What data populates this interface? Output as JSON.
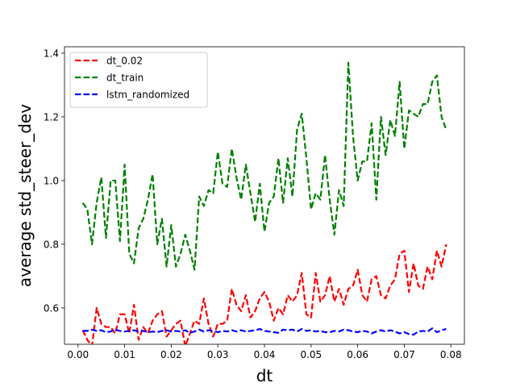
{
  "chart_data": {
    "type": "line",
    "xlabel": "dt",
    "ylabel": "average std_steer_dev",
    "xlim": [
      -0.0029,
      0.0829
    ],
    "ylim": [
      0.486,
      1.42
    ],
    "xticks": [
      0.0,
      0.01,
      0.02,
      0.03,
      0.04,
      0.05,
      0.06,
      0.07,
      0.08
    ],
    "xtick_labels": [
      "0.00",
      "0.01",
      "0.02",
      "0.03",
      "0.04",
      "0.05",
      "0.06",
      "0.07",
      "0.08"
    ],
    "yticks": [
      0.6,
      0.8,
      1.0,
      1.2,
      1.4
    ],
    "ytick_labels": [
      "0.6",
      "0.8",
      "1.0",
      "1.2",
      "1.4"
    ],
    "grid": false,
    "legend_position": "top-left",
    "x": [
      0.001,
      0.002,
      0.003,
      0.004,
      0.005,
      0.006,
      0.007,
      0.008,
      0.009,
      0.01,
      0.011,
      0.012,
      0.013,
      0.014,
      0.015,
      0.016,
      0.017,
      0.018,
      0.019,
      0.02,
      0.021,
      0.022,
      0.023,
      0.024,
      0.025,
      0.026,
      0.027,
      0.028,
      0.029,
      0.03,
      0.031,
      0.032,
      0.033,
      0.034,
      0.035,
      0.036,
      0.037,
      0.038,
      0.039,
      0.04,
      0.041,
      0.042,
      0.043,
      0.044,
      0.045,
      0.046,
      0.047,
      0.048,
      0.049,
      0.05,
      0.051,
      0.052,
      0.053,
      0.054,
      0.055,
      0.056,
      0.057,
      0.058,
      0.059,
      0.06,
      0.061,
      0.062,
      0.063,
      0.064,
      0.065,
      0.066,
      0.067,
      0.068,
      0.069,
      0.07,
      0.071,
      0.072,
      0.073,
      0.074,
      0.075,
      0.076,
      0.077,
      0.078,
      0.079
    ],
    "series": [
      {
        "name": "dt_0.02",
        "color": "#ff0000",
        "values": [
          0.53,
          0.5,
          0.48,
          0.6,
          0.55,
          0.54,
          0.54,
          0.52,
          0.58,
          0.58,
          0.52,
          0.61,
          0.5,
          0.54,
          0.52,
          0.56,
          0.58,
          0.59,
          0.51,
          0.53,
          0.55,
          0.56,
          0.48,
          0.52,
          0.56,
          0.55,
          0.63,
          0.55,
          0.51,
          0.55,
          0.55,
          0.56,
          0.66,
          0.61,
          0.59,
          0.64,
          0.57,
          0.59,
          0.63,
          0.65,
          0.62,
          0.56,
          0.6,
          0.58,
          0.64,
          0.62,
          0.64,
          0.71,
          0.58,
          0.57,
          0.71,
          0.62,
          0.64,
          0.7,
          0.62,
          0.66,
          0.61,
          0.66,
          0.67,
          0.72,
          0.64,
          0.62,
          0.69,
          0.7,
          0.64,
          0.63,
          0.67,
          0.69,
          0.77,
          0.78,
          0.65,
          0.74,
          0.67,
          0.66,
          0.73,
          0.69,
          0.78,
          0.73,
          0.8
        ]
      },
      {
        "name": "dt_train",
        "color": "#008000",
        "values": [
          0.93,
          0.91,
          0.8,
          0.93,
          1.01,
          0.82,
          1.0,
          1.0,
          0.81,
          1.05,
          0.77,
          0.74,
          0.85,
          0.88,
          0.94,
          1.02,
          0.8,
          0.88,
          0.73,
          0.86,
          0.73,
          0.77,
          0.83,
          0.78,
          0.72,
          0.95,
          0.92,
          0.97,
          0.96,
          1.09,
          0.99,
          0.98,
          1.1,
          1.01,
          0.94,
          1.05,
          0.96,
          0.87,
          0.99,
          0.84,
          0.93,
          0.95,
          1.07,
          0.93,
          1.07,
          0.95,
          1.16,
          1.21,
          1.07,
          0.91,
          0.96,
          0.94,
          1.08,
          0.94,
          0.83,
          0.97,
          0.92,
          1.37,
          1.14,
          1.0,
          1.06,
          1.06,
          1.18,
          0.94,
          1.2,
          1.08,
          1.19,
          1.14,
          1.31,
          1.1,
          1.22,
          1.21,
          1.2,
          1.24,
          1.24,
          1.31,
          1.33,
          1.2,
          1.16
        ]
      },
      {
        "name": "lstm_randomized",
        "color": "#0000ff",
        "values": [
          0.528,
          0.528,
          0.532,
          0.528,
          0.53,
          0.524,
          0.526,
          0.532,
          0.528,
          0.526,
          0.528,
          0.53,
          0.526,
          0.528,
          0.524,
          0.526,
          0.524,
          0.528,
          0.53,
          0.526,
          0.528,
          0.526,
          0.53,
          0.522,
          0.526,
          0.532,
          0.526,
          0.53,
          0.528,
          0.524,
          0.528,
          0.526,
          0.53,
          0.526,
          0.53,
          0.526,
          0.528,
          0.53,
          0.534,
          0.528,
          0.526,
          0.524,
          0.522,
          0.532,
          0.53,
          0.532,
          0.526,
          0.534,
          0.528,
          0.53,
          0.526,
          0.528,
          0.524,
          0.524,
          0.528,
          0.526,
          0.532,
          0.53,
          0.526,
          0.524,
          0.528,
          0.526,
          0.52,
          0.526,
          0.53,
          0.526,
          0.53,
          0.526,
          0.52,
          0.524,
          0.518,
          0.516,
          0.526,
          0.528,
          0.526,
          0.536,
          0.524,
          0.53,
          0.534
        ]
      }
    ]
  }
}
